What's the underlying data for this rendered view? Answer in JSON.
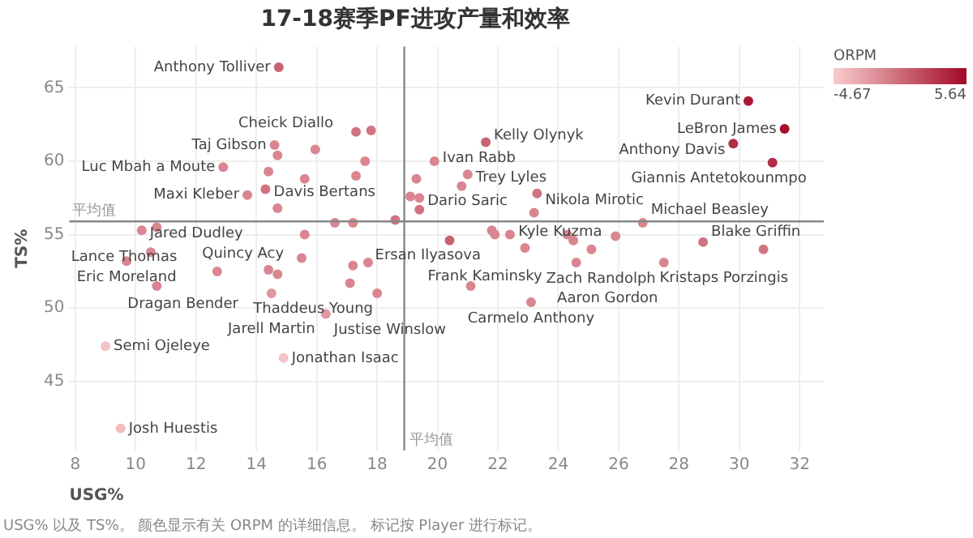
{
  "chart_data": {
    "type": "scatter",
    "title": "17-18赛季PF进攻产量和效率",
    "xlabel": "USG%",
    "ylabel": "TS%",
    "clabel": "ORPM",
    "clim": [
      -4.67,
      5.64
    ],
    "cticks": [
      -4.67,
      5.64
    ],
    "xlim": [
      7.8,
      32.8
    ],
    "ylim": [
      40.3,
      67.8
    ],
    "xticks": [
      8,
      10,
      12,
      14,
      16,
      18,
      20,
      22,
      24,
      26,
      28,
      30,
      32
    ],
    "yticks": [
      45,
      50,
      55,
      60,
      65
    ],
    "grid": true,
    "legend": false,
    "marker": "circle",
    "series": [
      {
        "x": [
          14.74,
          17.3,
          17.8,
          14.6,
          14.7,
          15.95,
          17.6,
          12.9,
          14.4,
          15.6,
          17.3,
          14.3,
          13.7,
          14.7,
          16.6,
          17.2,
          18.6,
          10.2,
          10.7,
          15.6,
          30.3,
          31.5,
          29.8,
          31.1,
          21.6,
          19.9,
          21.0,
          19.3,
          20.8,
          19.1,
          19.4,
          19.4,
          23.3,
          23.2,
          26.8,
          21.8,
          21.9,
          22.4,
          24.3,
          25.9,
          28.8,
          24.5,
          22.9,
          25.1,
          30.8,
          24.6,
          27.5,
          21.1,
          23.1,
          20.4,
          9.7,
          10.5,
          12.7,
          14.4,
          14.7,
          15.5,
          17.2,
          17.7,
          17.1,
          18.0,
          10.7,
          14.5,
          16.3,
          9.0,
          14.9,
          9.5
        ],
        "values": [
          66.4,
          62.0,
          62.1,
          61.1,
          60.4,
          60.8,
          60.0,
          59.6,
          59.3,
          58.8,
          59.0,
          58.1,
          57.7,
          56.8,
          55.8,
          55.8,
          56.0,
          55.3,
          55.5,
          55.0,
          64.1,
          62.2,
          61.2,
          59.9,
          61.3,
          60.0,
          59.1,
          58.8,
          58.3,
          57.6,
          57.5,
          56.7,
          57.8,
          56.5,
          55.8,
          55.3,
          55.0,
          55.0,
          55.0,
          54.9,
          54.5,
          54.6,
          54.1,
          54.0,
          54.0,
          53.1,
          53.1,
          51.5,
          50.4,
          54.6,
          53.2,
          53.8,
          52.5,
          52.6,
          52.3,
          53.4,
          52.9,
          53.1,
          51.7,
          51.0,
          51.5,
          51.0,
          49.6,
          47.4,
          46.6,
          41.8
        ],
        "cvalues": [
          1,
          0,
          0,
          -1,
          -1,
          -1,
          -1,
          -1,
          -1,
          -1,
          -1,
          0,
          -1,
          -1,
          -1,
          -1,
          0,
          -1,
          -1,
          -1,
          5,
          5.64,
          4,
          4,
          1,
          -1,
          -1,
          -1,
          -1,
          -1,
          -1,
          0,
          0,
          -1,
          -1,
          -1,
          -1,
          -1,
          -1,
          -1,
          0,
          -1,
          -1,
          -1,
          0,
          -1,
          -1,
          -1,
          -1,
          1,
          -1,
          -1,
          -1,
          -1,
          -1,
          -1,
          -1,
          -1,
          -1,
          -1,
          -1,
          -2,
          -2,
          -4.4,
          -4.4,
          -4
        ]
      }
    ],
    "ref_lines": [
      {
        "axis": "y",
        "value": 55.9,
        "label": "平均值",
        "color": "#888888"
      },
      {
        "axis": "x",
        "value": 18.9,
        "label": "平均值",
        "color": "#888888"
      }
    ],
    "annotations": [
      {
        "text": "Anthony Tolliver",
        "x": 14.74,
        "y": 66.4
      },
      {
        "text": "Taj Gibson",
        "x": 14.6,
        "y": 61.1
      },
      {
        "text": "Cheick Diallo",
        "x": 15.95,
        "y": 60.8
      },
      {
        "text": "Ivan Rabb",
        "x": 19.9,
        "y": 60.0
      },
      {
        "text": "Luc Mbah a Moute",
        "x": 12.9,
        "y": 59.6
      },
      {
        "text": "Maxi Kleber",
        "x": 13.7,
        "y": 57.7
      },
      {
        "text": "Davis Bertans",
        "x": 17.3,
        "y": 59.0
      },
      {
        "text": "Kelly Olynyk",
        "x": 21.6,
        "y": 61.3
      },
      {
        "text": "Trey Lyles",
        "x": 21.0,
        "y": 59.1
      },
      {
        "text": "Dario Saric",
        "x": 19.4,
        "y": 57.5
      },
      {
        "text": "Nikola Mirotic",
        "x": 23.3,
        "y": 57.8
      },
      {
        "text": "Ersan Ilyasova",
        "x": 18.6,
        "y": 56.0
      },
      {
        "text": "Kyle Kuzma",
        "x": 23.2,
        "y": 56.5
      },
      {
        "text": "Michael Beasley",
        "x": 26.8,
        "y": 55.8
      },
      {
        "text": "Blake Griffin",
        "x": 28.8,
        "y": 54.5
      },
      {
        "text": "Kevin Durant",
        "x": 30.3,
        "y": 64.1
      },
      {
        "text": "LeBron James",
        "x": 31.5,
        "y": 62.2
      },
      {
        "text": "Anthony Davis",
        "x": 29.8,
        "y": 61.2
      },
      {
        "text": "Giannis Antetokounmpo",
        "x": 31.1,
        "y": 59.9
      },
      {
        "text": "Kristaps Porzingis",
        "x": 30.8,
        "y": 54.0
      },
      {
        "text": "Frank Kaminsky",
        "x": 20.4,
        "y": 54.6
      },
      {
        "text": "Aaron Gordon",
        "x": 24.6,
        "y": 53.1
      },
      {
        "text": "Zach Randolph",
        "x": 27.5,
        "y": 53.1
      },
      {
        "text": "Carmelo Anthony",
        "x": 23.1,
        "y": 50.4
      },
      {
        "text": "Jared Dudley",
        "x": 10.2,
        "y": 55.3
      },
      {
        "text": "Quincy Acy",
        "x": 14.4,
        "y": 52.6
      },
      {
        "text": "Eric Moreland",
        "x": 9.7,
        "y": 53.2
      },
      {
        "text": "Dragan Bender",
        "x": 12.7,
        "y": 52.5
      },
      {
        "text": "Thaddeus Young",
        "x": 17.1,
        "y": 51.7
      },
      {
        "text": "Lance Thomas",
        "x": 10.7,
        "y": 51.5
      },
      {
        "text": "Jarell Martin",
        "x": 14.5,
        "y": 51.0
      },
      {
        "text": "Justise Winslow",
        "x": 16.3,
        "y": 49.6
      },
      {
        "text": "Semi Ojeleye",
        "x": 9.0,
        "y": 47.4
      },
      {
        "text": "Jonathan Isaac",
        "x": 14.9,
        "y": 46.6
      },
      {
        "text": "Josh Huestis",
        "x": 9.5,
        "y": 41.8
      },
      "USG% 以及 TS%。 颜色显示有关 ORPM 的详细信息。 标记按 Player 进行标记。"
    ]
  }
}
